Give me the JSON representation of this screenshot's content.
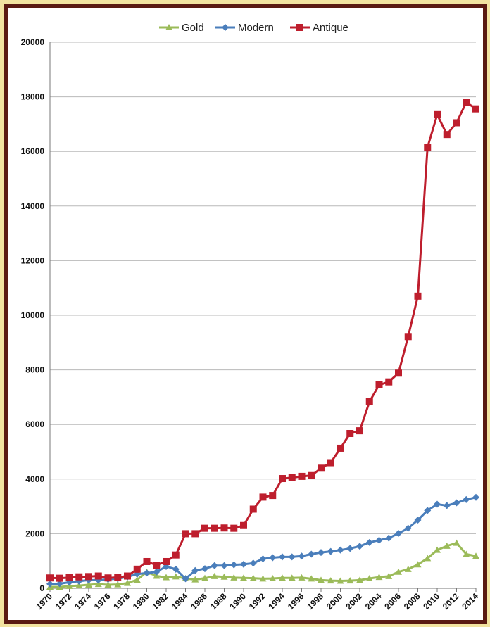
{
  "chart_data": {
    "type": "line",
    "title": "",
    "xlabel": "",
    "ylabel": "",
    "ylim": [
      0,
      20000
    ],
    "yticks": [
      0,
      2000,
      4000,
      6000,
      8000,
      10000,
      12000,
      14000,
      16000,
      18000,
      20000
    ],
    "xticks": [
      1970,
      1972,
      1974,
      1976,
      1978,
      1980,
      1982,
      1984,
      1986,
      1988,
      1990,
      1992,
      1994,
      1996,
      1998,
      2000,
      2002,
      2004,
      2006,
      2008,
      2010,
      2012,
      2014
    ],
    "x": [
      1970,
      1971,
      1972,
      1973,
      1974,
      1975,
      1976,
      1977,
      1978,
      1979,
      1980,
      1981,
      1982,
      1983,
      1984,
      1985,
      1986,
      1987,
      1988,
      1989,
      1990,
      1991,
      1992,
      1993,
      1994,
      1995,
      1996,
      1997,
      1998,
      1999,
      2000,
      2001,
      2002,
      2003,
      2004,
      2005,
      2006,
      2007,
      2008,
      2009,
      2010,
      2011,
      2012,
      2013,
      2014
    ],
    "legend": "top",
    "grid": true,
    "series": [
      {
        "name": "Gold",
        "color": "#9bbb59",
        "marker": "triangle",
        "values": [
          50,
          50,
          80,
          100,
          130,
          150,
          130,
          140,
          190,
          310,
          600,
          450,
          400,
          430,
          360,
          320,
          370,
          440,
          420,
          390,
          380,
          370,
          350,
          360,
          380,
          380,
          390,
          350,
          300,
          280,
          270,
          280,
          300,
          360,
          410,
          440,
          600,
          700,
          870,
          1100,
          1400,
          1550,
          1660,
          1250,
          1180
        ]
      },
      {
        "name": "Modern",
        "color": "#4a7ebb",
        "marker": "diamond",
        "values": [
          160,
          170,
          220,
          260,
          300,
          300,
          330,
          350,
          420,
          520,
          560,
          600,
          800,
          700,
          350,
          650,
          720,
          830,
          830,
          860,
          880,
          920,
          1080,
          1120,
          1150,
          1150,
          1180,
          1250,
          1310,
          1350,
          1400,
          1460,
          1540,
          1680,
          1760,
          1840,
          2010,
          2200,
          2500,
          2850,
          3080,
          3030,
          3130,
          3250,
          3330
        ]
      },
      {
        "name": "Antique",
        "color": "#be1e2d",
        "marker": "square",
        "values": [
          380,
          370,
          390,
          420,
          430,
          450,
          380,
          400,
          450,
          700,
          980,
          850,
          980,
          1220,
          2000,
          2000,
          2200,
          2200,
          2210,
          2200,
          2300,
          2900,
          3340,
          3400,
          4020,
          4050,
          4100,
          4130,
          4400,
          4600,
          5130,
          5670,
          5770,
          6830,
          7450,
          7560,
          7880,
          9220,
          10700,
          16150,
          17350,
          16620,
          17050,
          17800,
          17560
        ]
      }
    ]
  }
}
